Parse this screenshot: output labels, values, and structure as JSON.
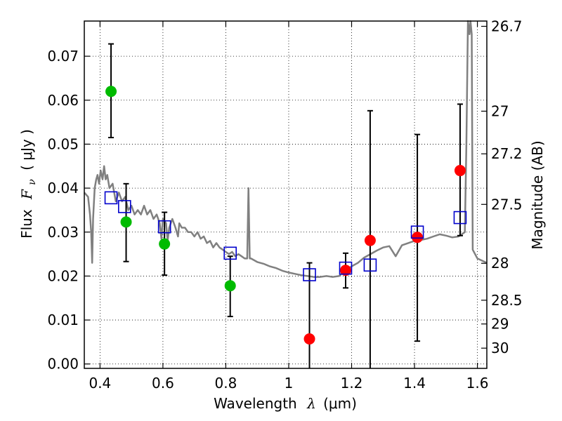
{
  "chart_data": {
    "type": "scatter",
    "xlabel_prefix": "Wavelength",
    "xlabel_symbol": "λ",
    "xlabel_unit": "(μm)",
    "ylabel_prefix": "Flux",
    "ylabel_symbol": "F",
    "ylabel_subscript": "ν",
    "ylabel_unit": "( μJy )",
    "y2label": "Magnitude (AB)",
    "xlim": [
      0.35,
      1.63
    ],
    "ylim": [
      -0.001,
      0.078
    ],
    "grid": true,
    "x_ticks": [
      {
        "value": 0.4,
        "label": "0.4"
      },
      {
        "value": 0.6,
        "label": "0.6"
      },
      {
        "value": 0.8,
        "label": "0.8"
      },
      {
        "value": 1.0,
        "label": "1"
      },
      {
        "value": 1.2,
        "label": "1.2"
      },
      {
        "value": 1.4,
        "label": "1.4"
      },
      {
        "value": 1.6,
        "label": "1.6"
      }
    ],
    "y_ticks": [
      {
        "value": 0.0,
        "label": "0.00"
      },
      {
        "value": 0.01,
        "label": "0.01"
      },
      {
        "value": 0.02,
        "label": "0.02"
      },
      {
        "value": 0.03,
        "label": "0.03"
      },
      {
        "value": 0.04,
        "label": "0.04"
      },
      {
        "value": 0.05,
        "label": "0.05"
      },
      {
        "value": 0.06,
        "label": "0.06"
      },
      {
        "value": 0.07,
        "label": "0.07"
      }
    ],
    "y2_ticks": [
      {
        "flux": 0.0768,
        "label": "26.7"
      },
      {
        "flux": 0.0575,
        "label": "27"
      },
      {
        "flux": 0.0478,
        "label": "27.2"
      },
      {
        "flux": 0.0363,
        "label": "27.5"
      },
      {
        "flux": 0.0229,
        "label": "28"
      },
      {
        "flux": 0.0145,
        "label": "28.5"
      },
      {
        "flux": 0.0091,
        "label": "29"
      },
      {
        "flux": 0.0036,
        "label": "30"
      }
    ],
    "model_color": "#808080",
    "model_spectrum": [
      [
        0.35,
        0.039
      ],
      [
        0.362,
        0.038
      ],
      [
        0.368,
        0.034
      ],
      [
        0.372,
        0.03
      ],
      [
        0.375,
        0.023
      ],
      [
        0.378,
        0.033
      ],
      [
        0.383,
        0.04
      ],
      [
        0.388,
        0.042
      ],
      [
        0.392,
        0.043
      ],
      [
        0.397,
        0.041
      ],
      [
        0.402,
        0.044
      ],
      [
        0.408,
        0.042
      ],
      [
        0.413,
        0.045
      ],
      [
        0.418,
        0.042
      ],
      [
        0.423,
        0.043
      ],
      [
        0.43,
        0.04
      ],
      [
        0.44,
        0.041
      ],
      [
        0.45,
        0.037
      ],
      [
        0.46,
        0.039
      ],
      [
        0.47,
        0.037
      ],
      [
        0.48,
        0.038
      ],
      [
        0.49,
        0.035
      ],
      [
        0.5,
        0.036
      ],
      [
        0.51,
        0.034
      ],
      [
        0.52,
        0.035
      ],
      [
        0.53,
        0.034
      ],
      [
        0.54,
        0.036
      ],
      [
        0.55,
        0.034
      ],
      [
        0.56,
        0.035
      ],
      [
        0.57,
        0.033
      ],
      [
        0.58,
        0.034
      ],
      [
        0.59,
        0.032
      ],
      [
        0.595,
        0.0285
      ],
      [
        0.6,
        0.033
      ],
      [
        0.61,
        0.032
      ],
      [
        0.615,
        0.028
      ],
      [
        0.62,
        0.031
      ],
      [
        0.63,
        0.033
      ],
      [
        0.64,
        0.031
      ],
      [
        0.648,
        0.029
      ],
      [
        0.652,
        0.032
      ],
      [
        0.66,
        0.031
      ],
      [
        0.67,
        0.031
      ],
      [
        0.68,
        0.03
      ],
      [
        0.69,
        0.03
      ],
      [
        0.7,
        0.029
      ],
      [
        0.71,
        0.03
      ],
      [
        0.72,
        0.0285
      ],
      [
        0.73,
        0.029
      ],
      [
        0.74,
        0.0275
      ],
      [
        0.75,
        0.028
      ],
      [
        0.76,
        0.0265
      ],
      [
        0.77,
        0.0275
      ],
      [
        0.78,
        0.0265
      ],
      [
        0.79,
        0.026
      ],
      [
        0.8,
        0.0255
      ],
      [
        0.81,
        0.025
      ],
      [
        0.82,
        0.0255
      ],
      [
        0.83,
        0.0245
      ],
      [
        0.84,
        0.025
      ],
      [
        0.85,
        0.0245
      ],
      [
        0.86,
        0.024
      ],
      [
        0.868,
        0.024
      ],
      [
        0.872,
        0.04
      ],
      [
        0.876,
        0.024
      ],
      [
        0.88,
        0.024
      ],
      [
        0.9,
        0.0232
      ],
      [
        0.92,
        0.0228
      ],
      [
        0.94,
        0.0222
      ],
      [
        0.96,
        0.0218
      ],
      [
        0.98,
        0.0212
      ],
      [
        1.0,
        0.0208
      ],
      [
        1.02,
        0.0205
      ],
      [
        1.04,
        0.0202
      ],
      [
        1.06,
        0.02
      ],
      [
        1.08,
        0.0198
      ],
      [
        1.1,
        0.0198
      ],
      [
        1.12,
        0.02
      ],
      [
        1.14,
        0.0198
      ],
      [
        1.16,
        0.02
      ],
      [
        1.18,
        0.0212
      ],
      [
        1.2,
        0.0222
      ],
      [
        1.22,
        0.023
      ],
      [
        1.24,
        0.0242
      ],
      [
        1.26,
        0.025
      ],
      [
        1.28,
        0.0258
      ],
      [
        1.3,
        0.0265
      ],
      [
        1.32,
        0.0268
      ],
      [
        1.34,
        0.0245
      ],
      [
        1.36,
        0.027
      ],
      [
        1.38,
        0.0275
      ],
      [
        1.4,
        0.028
      ],
      [
        1.42,
        0.0282
      ],
      [
        1.44,
        0.0285
      ],
      [
        1.46,
        0.029
      ],
      [
        1.48,
        0.0295
      ],
      [
        1.5,
        0.0292
      ],
      [
        1.52,
        0.0288
      ],
      [
        1.54,
        0.029
      ],
      [
        1.56,
        0.03
      ],
      [
        1.565,
        0.05
      ],
      [
        1.57,
        0.08
      ],
      [
        1.575,
        0.075
      ],
      [
        1.578,
        0.078
      ],
      [
        1.582,
        0.075
      ],
      [
        1.585,
        0.026
      ],
      [
        1.6,
        0.024
      ],
      [
        1.63,
        0.023
      ]
    ],
    "series": [
      {
        "marker": "circle",
        "color": "#00bb00",
        "points": [
          {
            "x": 0.435,
            "y": 0.062,
            "err_low": 0.0515,
            "err_high": 0.0728
          },
          {
            "x": 0.483,
            "y": 0.0323,
            "err_low": 0.0233,
            "err_high": 0.041
          },
          {
            "x": 0.605,
            "y": 0.0273,
            "err_low": 0.0202,
            "err_high": 0.0345
          },
          {
            "x": 0.814,
            "y": 0.0178,
            "err_low": 0.0108,
            "err_high": 0.0245
          }
        ]
      },
      {
        "marker": "circle",
        "color": "#ff0000",
        "points": [
          {
            "x": 1.066,
            "y": 0.0057,
            "err_low": -0.001,
            "err_high": 0.023
          },
          {
            "x": 1.181,
            "y": 0.0213,
            "err_low": 0.0173,
            "err_high": 0.0252
          },
          {
            "x": 1.259,
            "y": 0.0281,
            "err_low": -0.001,
            "err_high": 0.0576
          },
          {
            "x": 1.409,
            "y": 0.0288,
            "err_low": 0.0052,
            "err_high": 0.0522
          },
          {
            "x": 1.545,
            "y": 0.044,
            "err_low": 0.0292,
            "err_high": 0.0591
          }
        ]
      },
      {
        "marker": "open-square",
        "color": "#0000cc",
        "points": [
          {
            "x": 0.435,
            "y": 0.0378
          },
          {
            "x": 0.478,
            "y": 0.0358
          },
          {
            "x": 0.605,
            "y": 0.0312
          },
          {
            "x": 0.814,
            "y": 0.0252
          },
          {
            "x": 1.066,
            "y": 0.0203
          },
          {
            "x": 1.181,
            "y": 0.0218
          },
          {
            "x": 1.259,
            "y": 0.0225
          },
          {
            "x": 1.409,
            "y": 0.03
          },
          {
            "x": 1.545,
            "y": 0.0333
          }
        ]
      }
    ]
  }
}
